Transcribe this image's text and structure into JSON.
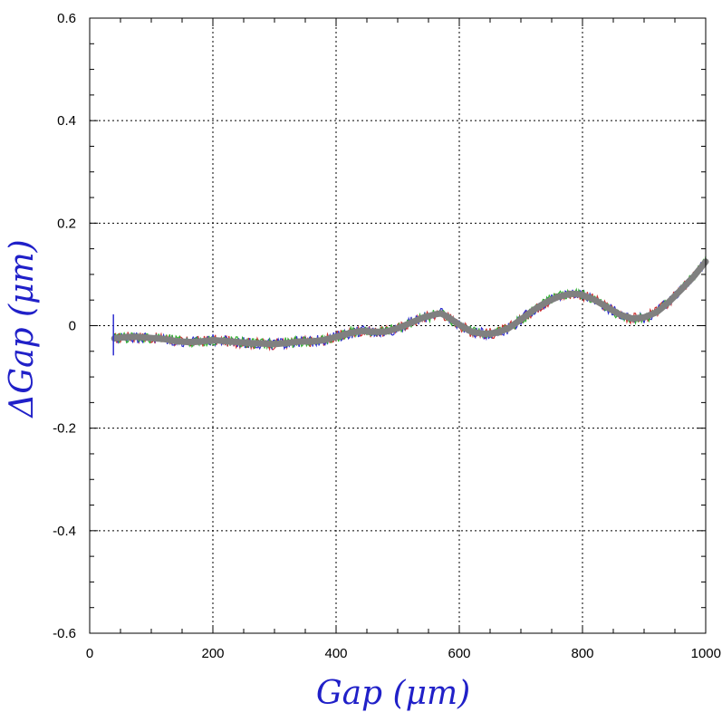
{
  "chart_data": {
    "type": "line",
    "title": "",
    "xlabel": "Gap (μm)",
    "ylabel": "ΔGap (μm)",
    "xlim": [
      0,
      1000
    ],
    "ylim": [
      -0.6,
      0.6
    ],
    "x_ticks": [
      "0",
      "200",
      "400",
      "600",
      "800",
      "1000"
    ],
    "y_ticks": [
      "-0.6",
      "-0.4",
      "-0.2",
      "0",
      "0.2",
      "0.4",
      "0.6"
    ],
    "grid": true,
    "series": [
      {
        "color": "#808080",
        "x": [
          40,
          60,
          80,
          100,
          120,
          140,
          160,
          180,
          200,
          220,
          240,
          260,
          280,
          300,
          320,
          340,
          360,
          380,
          400,
          420,
          440,
          460,
          480,
          500,
          520,
          540,
          560,
          570,
          580,
          600,
          620,
          640,
          660,
          680,
          700,
          720,
          740,
          760,
          780,
          790,
          800,
          820,
          840,
          860,
          880,
          900,
          920,
          940,
          960,
          980,
          1000
        ],
        "y": [
          -0.025,
          -0.022,
          -0.022,
          -0.024,
          -0.026,
          -0.03,
          -0.032,
          -0.031,
          -0.028,
          -0.03,
          -0.032,
          -0.034,
          -0.035,
          -0.036,
          -0.034,
          -0.031,
          -0.031,
          -0.028,
          -0.022,
          -0.015,
          -0.01,
          -0.012,
          -0.012,
          -0.005,
          0.005,
          0.015,
          0.022,
          0.024,
          0.018,
          0.002,
          -0.012,
          -0.016,
          -0.014,
          -0.005,
          0.012,
          0.03,
          0.045,
          0.056,
          0.062,
          0.062,
          0.06,
          0.05,
          0.036,
          0.022,
          0.014,
          0.016,
          0.026,
          0.046,
          0.07,
          0.095,
          0.125
        ]
      }
    ],
    "overlay_colors": [
      "#d03030",
      "#3030d0",
      "#30b030"
    ]
  }
}
